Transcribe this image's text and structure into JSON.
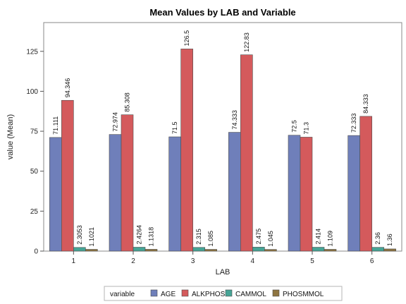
{
  "chart_data": {
    "type": "bar",
    "title": "Mean Values by LAB and Variable",
    "xlabel": "LAB",
    "ylabel": "value (Mean)",
    "categories": [
      "1",
      "2",
      "3",
      "4",
      "5",
      "6"
    ],
    "yticks": [
      0,
      25,
      50,
      75,
      100,
      125
    ],
    "ylim": [
      0,
      143
    ],
    "grid": false,
    "legend_title": "variable",
    "legend_position": "bottom",
    "series": [
      {
        "name": "AGE",
        "color": "#6f7fba",
        "values": [
          71.111,
          72.974,
          71.5,
          74.333,
          72.5,
          72.333
        ],
        "labels": [
          "71.111",
          "72.974",
          "71.5",
          "74.333",
          "72.5",
          "72.333"
        ]
      },
      {
        "name": "ALKPHOS",
        "color": "#d45a5c",
        "values": [
          94.346,
          85.308,
          126.5,
          122.83,
          71.3,
          84.333
        ],
        "labels": [
          "94.346",
          "85.308",
          "126.5",
          "122.83",
          "71.3",
          "84.333"
        ]
      },
      {
        "name": "CAMMOL",
        "color": "#46a496",
        "values": [
          2.3053,
          2.4264,
          2.315,
          2.475,
          2.414,
          2.36
        ],
        "labels": [
          "2.3053",
          "2.4264",
          "2.315",
          "2.475",
          "2.414",
          "2.36"
        ]
      },
      {
        "name": "PHOSMMOL",
        "color": "#8e7440",
        "values": [
          1.1021,
          1.1318,
          1.085,
          1.045,
          1.109,
          1.36
        ],
        "labels": [
          "1.1021",
          "1.1318",
          "1.085",
          "1.045",
          "1.109",
          "1.36"
        ]
      }
    ]
  }
}
